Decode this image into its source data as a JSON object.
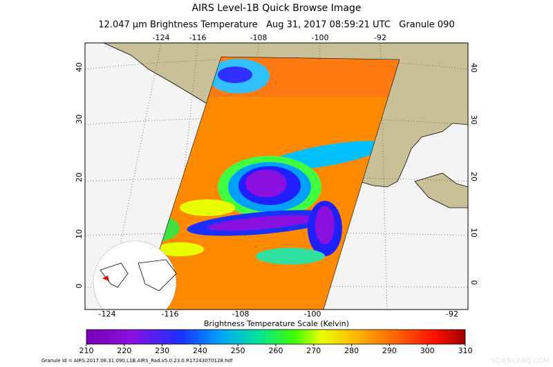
{
  "header": {
    "title": "AIRS Level-1B Quick Browse Image",
    "subtitle": "12.047 µm Brightness Temperature   Aug 31, 2017 08:59:21 UTC   Granule 090"
  },
  "map": {
    "top_longitude_labels": [
      "-124",
      "-116",
      "-108",
      "-100",
      "-92"
    ],
    "bottom_longitude_labels": [
      "-124",
      "-116",
      "-108",
      "-100",
      "-92"
    ],
    "left_latitude_labels": [
      "40",
      "30",
      "20",
      "10",
      "0"
    ],
    "right_latitude_labels": [
      "40",
      "30",
      "20",
      "10",
      "0"
    ]
  },
  "colorbar": {
    "title": "Brightness Temperature Scale (Kelvin)",
    "ticks": [
      210,
      220,
      230,
      240,
      250,
      260,
      270,
      280,
      290,
      300,
      310
    ]
  },
  "footer": {
    "granule_id": "Granule Id = AIRS.2017.08.31.090.L1B.AIRS_Rad.v5.0.23.0.R17243070128.hdf",
    "watermark": "SCIENCEAQ.COM"
  }
}
